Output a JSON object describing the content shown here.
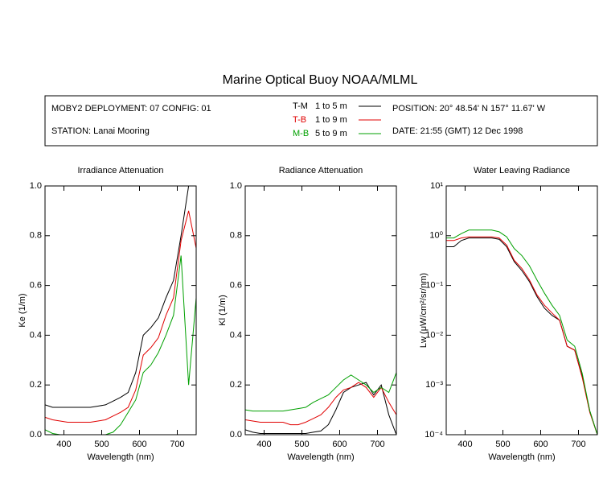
{
  "title": "Marine Optical Buoy NOAA/MLML",
  "info": {
    "deployment": "MOBY2 DEPLOYMENT: 07 CONFIG: 01",
    "station": "STATION: Lanai Mooring",
    "position": "POSITION: 20° 48.54' N   157° 11.67' W",
    "date": "DATE: 21:55 (GMT) 12 Dec 1998"
  },
  "legend": [
    {
      "name": "T-M",
      "label": "1 to 5  m"
    },
    {
      "name": "T-B",
      "label": "1 to 9  m"
    },
    {
      "name": "M-B",
      "label": "5 to 9  m"
    }
  ],
  "chart_data": [
    {
      "type": "line",
      "title": "Irradiance Attenuation",
      "x_label": "Wavelength (nm)",
      "y_label": "Ke  (1/m)",
      "x": [
        350,
        370,
        390,
        410,
        430,
        450,
        470,
        490,
        510,
        530,
        550,
        570,
        590,
        610,
        630,
        650,
        670,
        690,
        710,
        730,
        750
      ],
      "xlim": [
        350,
        750
      ],
      "xticks": [
        400,
        500,
        600,
        700
      ],
      "ylim": [
        0,
        1
      ],
      "yticks": [
        {
          "value": 0,
          "label": "0.0"
        },
        0.2,
        0.4,
        0.6,
        0.8,
        {
          "value": 1,
          "label": "1.0"
        }
      ],
      "series": [
        {
          "color": "#000000",
          "values": [
            0.12,
            0.11,
            0.11,
            0.11,
            0.11,
            0.11,
            0.11,
            0.115,
            0.12,
            0.135,
            0.15,
            0.17,
            0.25,
            0.4,
            0.43,
            0.47,
            0.55,
            0.62,
            0.8,
            1.0,
            1.0
          ]
        },
        {
          "color": "#e00000",
          "values": [
            0.07,
            0.06,
            0.055,
            0.05,
            0.05,
            0.05,
            0.05,
            0.055,
            0.06,
            0.075,
            0.09,
            0.11,
            0.18,
            0.32,
            0.35,
            0.39,
            0.48,
            0.55,
            0.78,
            0.9,
            0.75
          ]
        },
        {
          "color": "#00a000",
          "values": [
            0.02,
            0.005,
            0,
            0,
            0,
            0,
            0,
            0,
            0,
            0.01,
            0.04,
            0.09,
            0.14,
            0.25,
            0.28,
            0.33,
            0.4,
            0.48,
            0.72,
            0.2,
            0.55
          ]
        }
      ]
    },
    {
      "type": "line",
      "title": "Radiance Attenuation",
      "x_label": "Wavelength (nm)",
      "y_label": "Kl  (1/m)",
      "x": [
        350,
        370,
        390,
        410,
        430,
        450,
        470,
        490,
        510,
        530,
        550,
        570,
        590,
        610,
        630,
        650,
        670,
        690,
        710,
        730,
        750
      ],
      "xlim": [
        350,
        750
      ],
      "xticks": [
        400,
        500,
        600,
        700
      ],
      "ylim": [
        0,
        1
      ],
      "yticks": [
        {
          "value": 0,
          "label": "0.0"
        },
        0.2,
        0.4,
        0.6,
        0.8,
        {
          "value": 1,
          "label": "1.0"
        }
      ],
      "series": [
        {
          "color": "#000000",
          "values": [
            0.02,
            0.01,
            0.005,
            0.005,
            0.005,
            0.005,
            0.005,
            0.005,
            0.005,
            0.01,
            0.015,
            0.04,
            0.1,
            0.17,
            0.19,
            0.2,
            0.21,
            0.16,
            0.2,
            0.08,
            0.0
          ]
        },
        {
          "color": "#e00000",
          "values": [
            0.06,
            0.055,
            0.05,
            0.05,
            0.05,
            0.05,
            0.04,
            0.04,
            0.05,
            0.065,
            0.08,
            0.11,
            0.15,
            0.18,
            0.19,
            0.21,
            0.19,
            0.15,
            0.19,
            0.13,
            0.08
          ]
        },
        {
          "color": "#00a000",
          "values": [
            0.1,
            0.095,
            0.095,
            0.095,
            0.095,
            0.095,
            0.1,
            0.105,
            0.11,
            0.13,
            0.145,
            0.16,
            0.19,
            0.22,
            0.24,
            0.22,
            0.2,
            0.17,
            0.19,
            0.17,
            0.25
          ]
        }
      ]
    },
    {
      "type": "line",
      "title": "Water Leaving Radiance",
      "x_label": "Wavelength (nm)",
      "y_label": "Lw  (μW/cm²/sr/nm)",
      "log": true,
      "x": [
        350,
        370,
        390,
        410,
        430,
        450,
        470,
        490,
        510,
        530,
        550,
        570,
        590,
        610,
        630,
        650,
        670,
        690,
        710,
        730,
        750
      ],
      "xlim": [
        350,
        750
      ],
      "xticks": [
        400,
        500,
        600,
        700
      ],
      "ylim": [
        0.0001,
        10
      ],
      "yticks": [
        {
          "value": 0.0001,
          "label": "10⁻⁴"
        },
        {
          "value": 0.001,
          "label": "10⁻³"
        },
        {
          "value": 0.01,
          "label": "10⁻²"
        },
        {
          "value": 0.1,
          "label": "10⁻¹"
        },
        {
          "value": 1,
          "label": "10⁰"
        },
        {
          "value": 10,
          "label": "10¹"
        }
      ],
      "series": [
        {
          "color": "#000000",
          "values": [
            0.6,
            0.6,
            0.8,
            0.9,
            0.9,
            0.9,
            0.9,
            0.85,
            0.6,
            0.3,
            0.2,
            0.12,
            0.06,
            0.035,
            0.025,
            0.02,
            0.006,
            0.005,
            0.0015,
            0.0003,
            0.0001
          ]
        },
        {
          "color": "#e00000",
          "values": [
            0.8,
            0.8,
            0.9,
            0.95,
            0.95,
            0.95,
            0.95,
            0.9,
            0.65,
            0.32,
            0.22,
            0.13,
            0.065,
            0.04,
            0.028,
            0.02,
            0.006,
            0.005,
            0.0014,
            0.00028,
            0.0001
          ]
        },
        {
          "color": "#00a000",
          "values": [
            0.9,
            0.9,
            1.1,
            1.3,
            1.3,
            1.3,
            1.3,
            1.2,
            0.95,
            0.55,
            0.4,
            0.25,
            0.13,
            0.07,
            0.04,
            0.025,
            0.008,
            0.006,
            0.0017,
            0.0003,
            0.0001
          ]
        }
      ]
    }
  ]
}
